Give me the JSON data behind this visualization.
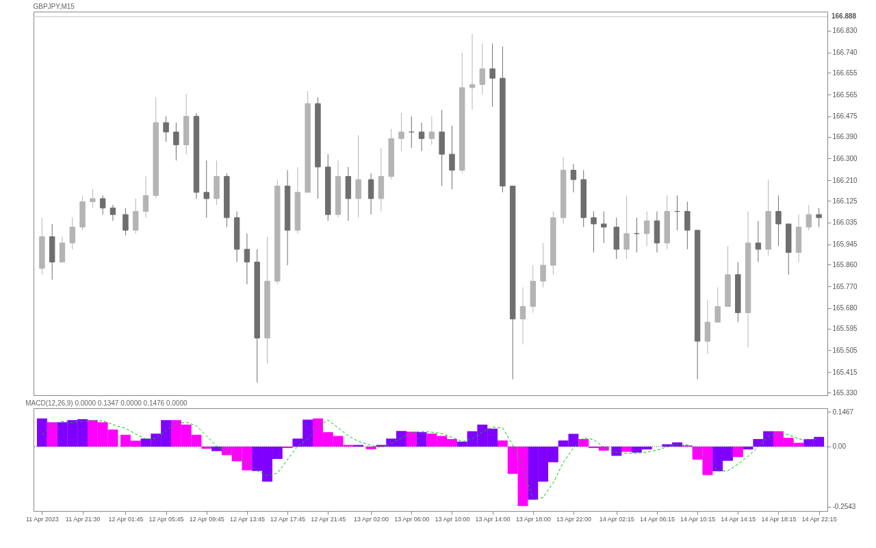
{
  "chart_data": [
    {
      "type": "candlestick",
      "title": "GBPJPY,M15",
      "x": [
        "2023-04-11T17:30",
        "2023-04-11T18:30",
        "2023-04-11T19:30",
        "2023-04-11T20:30",
        "2023-04-11T21:30",
        "2023-04-11T22:30",
        "2023-04-11T23:30",
        "2023-04-12T00:30",
        "2023-04-12T01:45",
        "2023-04-12T02:45",
        "2023-04-12T03:45",
        "2023-04-12T04:45",
        "2023-04-12T05:45",
        "2023-04-12T06:45",
        "2023-04-12T07:45",
        "2023-04-12T08:45",
        "2023-04-12T09:45",
        "2023-04-12T10:45",
        "2023-04-12T11:45",
        "2023-04-12T12:45",
        "2023-04-12T13:45",
        "2023-04-12T14:45",
        "2023-04-12T15:45",
        "2023-04-12T16:45",
        "2023-04-12T17:45",
        "2023-04-12T18:45",
        "2023-04-12T19:45",
        "2023-04-12T20:45",
        "2023-04-12T21:45",
        "2023-04-12T22:45",
        "2023-04-12T23:45",
        "2023-04-13T00:45",
        "2023-04-13T02:00",
        "2023-04-13T03:00",
        "2023-04-13T04:00",
        "2023-04-13T05:00",
        "2023-04-13T06:00",
        "2023-04-13T07:00",
        "2023-04-13T08:00",
        "2023-04-13T09:00",
        "2023-04-13T10:00",
        "2023-04-13T11:00",
        "2023-04-13T12:00",
        "2023-04-13T13:00",
        "2023-04-13T14:00",
        "2023-04-13T15:00",
        "2023-04-13T16:00",
        "2023-04-13T17:00",
        "2023-04-13T18:00",
        "2023-04-13T19:00",
        "2023-04-13T20:00",
        "2023-04-13T21:00",
        "2023-04-13T22:00",
        "2023-04-13T23:00",
        "2023-04-14T00:00",
        "2023-04-14T01:00",
        "2023-04-14T02:15",
        "2023-04-14T03:15",
        "2023-04-14T04:15",
        "2023-04-14T05:15",
        "2023-04-14T06:15",
        "2023-04-14T07:15",
        "2023-04-14T08:15",
        "2023-04-14T09:15",
        "2023-04-14T10:15",
        "2023-04-14T11:15",
        "2023-04-14T12:15",
        "2023-04-14T13:15",
        "2023-04-14T14:15",
        "2023-04-14T15:15",
        "2023-04-14T16:15",
        "2023-04-14T17:15",
        "2023-04-14T18:15",
        "2023-04-14T19:15",
        "2023-04-14T20:15",
        "2023-04-14T21:15",
        "2023-04-14T22:15"
      ],
      "ohlc": [
        [
          165.845,
          166.055,
          165.819,
          165.976
        ],
        [
          165.976,
          166.029,
          165.798,
          165.871
        ],
        [
          165.871,
          165.976,
          165.871,
          165.95
        ],
        [
          165.95,
          166.055,
          165.924,
          166.016
        ],
        [
          166.016,
          166.147,
          166.003,
          166.121
        ],
        [
          166.121,
          166.173,
          166.095,
          166.134
        ],
        [
          166.134,
          166.147,
          166.068,
          166.095
        ],
        [
          166.095,
          166.108,
          166.042,
          166.068
        ],
        [
          166.068,
          166.095,
          165.982,
          166.003
        ],
        [
          166.003,
          166.134,
          165.989,
          166.081
        ],
        [
          166.081,
          166.226,
          166.055,
          166.147
        ],
        [
          166.147,
          166.554,
          166.134,
          166.449
        ],
        [
          166.449,
          166.475,
          166.37,
          166.41
        ],
        [
          166.41,
          166.449,
          166.292,
          166.357
        ],
        [
          166.357,
          166.567,
          166.318,
          166.475
        ],
        [
          166.475,
          166.489,
          166.134,
          166.16
        ],
        [
          166.16,
          166.292,
          166.055,
          166.134
        ],
        [
          166.134,
          166.292,
          166.108,
          166.226
        ],
        [
          166.226,
          166.239,
          166.016,
          166.055
        ],
        [
          166.055,
          166.081,
          165.871,
          165.924
        ],
        [
          165.924,
          165.989,
          165.779,
          165.871
        ],
        [
          165.871,
          165.924,
          165.372,
          165.556
        ],
        [
          165.556,
          165.976,
          165.451,
          165.792
        ],
        [
          165.792,
          166.213,
          165.779,
          166.186
        ],
        [
          166.186,
          166.252,
          165.858,
          166.003
        ],
        [
          166.003,
          166.265,
          165.989,
          166.16
        ],
        [
          166.16,
          166.58,
          166.16,
          166.528
        ],
        [
          166.528,
          166.554,
          166.134,
          166.265
        ],
        [
          166.265,
          166.318,
          166.042,
          166.068
        ],
        [
          166.068,
          166.292,
          166.055,
          166.226
        ],
        [
          166.226,
          166.265,
          166.042,
          166.134
        ],
        [
          166.134,
          166.397,
          166.055,
          166.213
        ],
        [
          166.213,
          166.239,
          166.068,
          166.134
        ],
        [
          166.134,
          166.344,
          166.081,
          166.226
        ],
        [
          166.226,
          166.423,
          166.213,
          166.383
        ],
        [
          166.383,
          166.489,
          166.331,
          166.41
        ],
        [
          166.41,
          166.475,
          166.344,
          166.41
        ],
        [
          166.41,
          166.449,
          166.331,
          166.383
        ],
        [
          166.383,
          166.475,
          166.357,
          166.41
        ],
        [
          166.41,
          166.502,
          166.186,
          166.318
        ],
        [
          166.318,
          166.436,
          166.173,
          166.252
        ],
        [
          166.252,
          166.738,
          166.239,
          166.594
        ],
        [
          166.594,
          166.817,
          166.502,
          166.607
        ],
        [
          166.607,
          166.777,
          166.567,
          166.672
        ],
        [
          166.672,
          166.777,
          166.515,
          166.633
        ],
        [
          166.633,
          166.764,
          166.16,
          166.186
        ],
        [
          166.186,
          166.186,
          165.385,
          165.635
        ],
        [
          165.635,
          165.766,
          165.53,
          165.687
        ],
        [
          165.687,
          165.858,
          165.661,
          165.792
        ],
        [
          165.792,
          165.95,
          165.766,
          165.858
        ],
        [
          165.858,
          166.081,
          165.819,
          166.055
        ],
        [
          166.055,
          166.305,
          166.029,
          166.252
        ],
        [
          166.252,
          166.278,
          166.16,
          166.213
        ],
        [
          166.213,
          166.252,
          166.016,
          166.055
        ],
        [
          166.055,
          166.081,
          165.911,
          166.029
        ],
        [
          166.029,
          166.081,
          165.95,
          166.016
        ],
        [
          166.016,
          166.055,
          165.884,
          165.924
        ],
        [
          165.924,
          166.147,
          165.884,
          165.989
        ],
        [
          165.989,
          166.055,
          165.911,
          165.989
        ],
        [
          165.989,
          166.081,
          165.937,
          166.042
        ],
        [
          166.042,
          166.081,
          165.911,
          165.95
        ],
        [
          165.95,
          166.147,
          165.924,
          166.081
        ],
        [
          166.081,
          166.147,
          166.003,
          166.081
        ],
        [
          166.081,
          166.121,
          165.924,
          166.003
        ],
        [
          166.003,
          166.003,
          165.385,
          165.543
        ],
        [
          165.543,
          165.714,
          165.49,
          165.622
        ],
        [
          165.622,
          165.766,
          165.622,
          165.687
        ],
        [
          165.687,
          165.937,
          165.687,
          165.819
        ],
        [
          165.819,
          165.871,
          165.622,
          165.661
        ],
        [
          165.661,
          166.081,
          165.517,
          165.95
        ],
        [
          165.95,
          166.042,
          165.871,
          165.924
        ],
        [
          165.924,
          166.213,
          165.898,
          166.081
        ],
        [
          166.081,
          166.147,
          165.937,
          166.029
        ],
        [
          166.029,
          166.029,
          165.819,
          165.911
        ],
        [
          165.911,
          166.068,
          165.871,
          166.016
        ],
        [
          166.016,
          166.108,
          166.003,
          166.068
        ],
        [
          166.068,
          166.095,
          166.016,
          166.055
        ]
      ],
      "colors": [
        "#b4b4b4",
        "#6e6e6e",
        "#b4b4b4",
        "#b4b4b4",
        "#b4b4b4",
        "#b4b4b4",
        "#6e6e6e",
        "#6e6e6e",
        "#6e6e6e",
        "#b4b4b4",
        "#b4b4b4",
        "#b4b4b4",
        "#6e6e6e",
        "#6e6e6e",
        "#b4b4b4",
        "#6e6e6e",
        "#6e6e6e",
        "#b4b4b4",
        "#6e6e6e",
        "#6e6e6e",
        "#6e6e6e",
        "#6e6e6e",
        "#b4b4b4",
        "#b4b4b4",
        "#6e6e6e",
        "#b4b4b4",
        "#b4b4b4",
        "#6e6e6e",
        "#6e6e6e",
        "#b4b4b4",
        "#6e6e6e",
        "#b4b4b4",
        "#6e6e6e",
        "#b4b4b4",
        "#b4b4b4",
        "#b4b4b4",
        "#6e6e6e",
        "#6e6e6e",
        "#b4b4b4",
        "#6e6e6e",
        "#6e6e6e",
        "#b4b4b4",
        "#b4b4b4",
        "#b4b4b4",
        "#6e6e6e",
        "#6e6e6e",
        "#6e6e6e",
        "#b4b4b4",
        "#b4b4b4",
        "#b4b4b4",
        "#b4b4b4",
        "#b4b4b4",
        "#6e6e6e",
        "#6e6e6e",
        "#6e6e6e",
        "#6e6e6e",
        "#6e6e6e",
        "#b4b4b4",
        "#6e6e6e",
        "#b4b4b4",
        "#6e6e6e",
        "#b4b4b4",
        "#6e6e6e",
        "#6e6e6e",
        "#6e6e6e",
        "#b4b4b4",
        "#b4b4b4",
        "#b4b4b4",
        "#6e6e6e",
        "#b4b4b4",
        "#6e6e6e",
        "#b4b4b4",
        "#6e6e6e",
        "#6e6e6e",
        "#b4b4b4",
        "#b4b4b4",
        "#6e6e6e"
      ],
      "xlim": [
        "2023-04-11T17:00",
        "2023-04-14T22:45"
      ],
      "ylim": [
        165.319,
        166.909
      ],
      "yticks": [
        {
          "value": 166.83,
          "label": "166.830"
        },
        {
          "value": 166.74,
          "label": "166.740"
        },
        166.655,
        166.565,
        166.475,
        {
          "value": 166.39,
          "label": "166.390"
        },
        {
          "value": 166.3,
          "label": "166.300"
        },
        {
          "value": 166.21,
          "label": "166.210"
        },
        166.125,
        166.035,
        165.945,
        {
          "value": 165.86,
          "label": "165.860"
        },
        {
          "value": 165.77,
          "label": "165.770"
        },
        {
          "value": 165.68,
          "label": "165.680"
        },
        165.595,
        165.505,
        165.415,
        {
          "value": 165.33,
          "label": "165.330"
        }
      ],
      "ref_lines": [
        {
          "axis": "y",
          "value": 166.888,
          "label": "166.888",
          "color": "#c8c8c8"
        }
      ],
      "tick_labels": "y"
    },
    {
      "type": "bar",
      "title": "MACD(12,26,9) 0.0000 0.1347 0.0000 0.1476 0.0000",
      "x": [
        "2023-04-11T17:30",
        "2023-04-11T18:30",
        "2023-04-11T19:30",
        "2023-04-11T20:30",
        "2023-04-11T21:30",
        "2023-04-11T22:30",
        "2023-04-11T23:30",
        "2023-04-12T00:30",
        "2023-04-12T01:45",
        "2023-04-12T02:45",
        "2023-04-12T03:45",
        "2023-04-12T04:45",
        "2023-04-12T05:45",
        "2023-04-12T06:45",
        "2023-04-12T07:45",
        "2023-04-12T08:45",
        "2023-04-12T09:45",
        "2023-04-12T10:45",
        "2023-04-12T11:45",
        "2023-04-12T12:45",
        "2023-04-12T13:45",
        "2023-04-12T14:45",
        "2023-04-12T15:45",
        "2023-04-12T16:45",
        "2023-04-12T17:45",
        "2023-04-12T18:45",
        "2023-04-12T19:45",
        "2023-04-12T20:45",
        "2023-04-12T21:45",
        "2023-04-12T22:45",
        "2023-04-12T23:45",
        "2023-04-13T00:45",
        "2023-04-13T02:00",
        "2023-04-13T03:00",
        "2023-04-13T04:00",
        "2023-04-13T05:00",
        "2023-04-13T06:00",
        "2023-04-13T07:00",
        "2023-04-13T08:00",
        "2023-04-13T09:00",
        "2023-04-13T10:00",
        "2023-04-13T11:00",
        "2023-04-13T12:00",
        "2023-04-13T13:00",
        "2023-04-13T14:00",
        "2023-04-13T15:00",
        "2023-04-13T16:00",
        "2023-04-13T17:00",
        "2023-04-13T18:00",
        "2023-04-13T19:00",
        "2023-04-13T20:00",
        "2023-04-13T21:00",
        "2023-04-13T22:00",
        "2023-04-13T23:00",
        "2023-04-14T00:00",
        "2023-04-14T01:00",
        "2023-04-14T02:15",
        "2023-04-14T03:15",
        "2023-04-14T04:15",
        "2023-04-14T05:15",
        "2023-04-14T06:15",
        "2023-04-14T07:15",
        "2023-04-14T08:15",
        "2023-04-14T09:15",
        "2023-04-14T10:15",
        "2023-04-14T11:15",
        "2023-04-14T12:15",
        "2023-04-14T13:15",
        "2023-04-14T14:15",
        "2023-04-14T15:15",
        "2023-04-14T16:15",
        "2023-04-14T17:15",
        "2023-04-14T18:15",
        "2023-04-14T19:15",
        "2023-04-14T20:15",
        "2023-04-14T21:15",
        "2023-04-14T22:15"
      ],
      "series": [
        {
          "type": "bar",
          "colors": [
            "#8000ff",
            "#ff00ff",
            "#8000ff",
            "#8000ff",
            "#8000ff",
            "#ff00ff",
            "#ff00ff",
            "#ff00ff",
            "#ff00ff",
            "#ff00ff",
            "#8000ff",
            "#8000ff",
            "#8000ff",
            "#ff00ff",
            "#ff00ff",
            "#ff00ff",
            "#ff00ff",
            "#8000ff",
            "#ff00ff",
            "#ff00ff",
            "#ff00ff",
            "#8000ff",
            "#8000ff",
            "#8000ff",
            "#ff00ff",
            "#8000ff",
            "#8000ff",
            "#ff00ff",
            "#ff00ff",
            "#ff00ff",
            "#ff00ff",
            "#8000ff",
            "#ff00ff",
            "#8000ff",
            "#8000ff",
            "#8000ff",
            "#ff00ff",
            "#8000ff",
            "#ff00ff",
            "#ff00ff",
            "#ff00ff",
            "#8000ff",
            "#8000ff",
            "#8000ff",
            "#8000ff",
            "#ff00ff",
            "#ff00ff",
            "#ff00ff",
            "#8000ff",
            "#8000ff",
            "#8000ff",
            "#8000ff",
            "#8000ff",
            "#ff00ff",
            "#ff00ff",
            "#ff00ff",
            "#8000ff",
            "#ff00ff",
            "#8000ff",
            "#8000ff",
            "#8000ff",
            "#8000ff",
            "#8000ff",
            "#ff00ff",
            "#ff00ff",
            "#ff00ff",
            "#8000ff",
            "#8000ff",
            "#ff00ff",
            "#8000ff",
            "#8000ff",
            "#8000ff",
            "#ff00ff",
            "#ff00ff",
            "#ff00ff",
            "#8000ff",
            "#8000ff"
          ],
          "values": [
            0.119,
            0.103,
            0.103,
            0.112,
            0.116,
            0.112,
            0.103,
            0.072,
            0.05,
            0.025,
            0.034,
            0.055,
            0.112,
            0.112,
            0.093,
            0.05,
            -0.009,
            -0.019,
            -0.036,
            -0.062,
            -0.1,
            -0.103,
            -0.148,
            -0.052,
            -0.006,
            0.034,
            0.114,
            0.119,
            0.061,
            0.045,
            0.007,
            0.007,
            -0.011,
            0.007,
            0.034,
            0.066,
            0.063,
            0.061,
            0.055,
            0.045,
            0.032,
            0.021,
            0.065,
            0.093,
            0.076,
            0.026,
            -0.115,
            -0.251,
            -0.224,
            -0.148,
            -0.066,
            0.026,
            0.054,
            0.032,
            -0.006,
            -0.017,
            -0.039,
            -0.022,
            -0.025,
            -0.012,
            null,
            0.01,
            0.018,
            0.005,
            -0.055,
            -0.12,
            -0.104,
            -0.06,
            -0.044,
            -0.012,
            0.032,
            0.065,
            0.065,
            0.037,
            0.016,
            0.032,
            0.041
          ]
        },
        {
          "type": "line",
          "color": "#00c000",
          "line_style": "dashed",
          "values": [
            0.05,
            0.095,
            0.106,
            0.103,
            0.107,
            0.109,
            0.109,
            0.093,
            0.077,
            0.053,
            0.032,
            0.034,
            0.069,
            0.097,
            0.103,
            0.088,
            0.045,
            0.002,
            -0.023,
            -0.043,
            -0.068,
            -0.102,
            -0.123,
            -0.112,
            -0.055,
            0.002,
            0.032,
            0.084,
            0.112,
            0.08,
            0.045,
            0.023,
            0.005,
            -0.003,
            0.013,
            0.037,
            0.059,
            0.064,
            0.061,
            0.055,
            0.039,
            0.021,
            0.032,
            0.062,
            0.083,
            0.079,
            0.007,
            -0.088,
            -0.224,
            -0.215,
            -0.153,
            -0.066,
            -0.006,
            0.037,
            0.03,
            -0.004,
            -0.024,
            -0.028,
            -0.028,
            -0.023,
            -0.015,
            -0.001,
            0.009,
            0.007,
            -0.008,
            -0.058,
            -0.104,
            -0.102,
            -0.074,
            -0.041,
            -0.001,
            0.043,
            0.057,
            0.05,
            0.032,
            0.029,
            0.032
          ]
        }
      ],
      "xlim": [
        "2023-04-11T17:00",
        "2023-04-14T22:45"
      ],
      "xticks": [
        {
          "value": "2023-04-11T17:30",
          "label": "11 Apr 2023"
        },
        {
          "value": "2023-04-11T21:30",
          "label": "11 Apr 21:30"
        },
        {
          "value": "2023-04-12T01:45",
          "label": "12 Apr 01:45"
        },
        {
          "value": "2023-04-12T05:45",
          "label": "12 Apr 05:45"
        },
        {
          "value": "2023-04-12T09:45",
          "label": "12 Apr 09:45"
        },
        {
          "value": "2023-04-12T13:45",
          "label": "12 Apr 13:45"
        },
        {
          "value": "2023-04-12T17:45",
          "label": "12 Apr 17:45"
        },
        {
          "value": "2023-04-12T21:45",
          "label": "12 Apr 21:45"
        },
        {
          "value": "2023-04-13T02:00",
          "label": "13 Apr 02:00"
        },
        {
          "value": "2023-04-13T06:00",
          "label": "13 Apr 06:00"
        },
        {
          "value": "2023-04-13T10:00",
          "label": "13 Apr 10:00"
        },
        {
          "value": "2023-04-13T14:00",
          "label": "13 Apr 14:00"
        },
        {
          "value": "2023-04-13T18:00",
          "label": "13 Apr 18:00"
        },
        {
          "value": "2023-04-13T22:00",
          "label": "13 Apr 22:00"
        },
        {
          "value": "2023-04-14T02:15",
          "label": "14 Apr 02:15"
        },
        {
          "value": "2023-04-14T06:15",
          "label": "14 Apr 06:15"
        },
        {
          "value": "2023-04-14T10:15",
          "label": "14 Apr 10:15"
        },
        {
          "value": "2023-04-14T14:15",
          "label": "14 Apr 14:15"
        },
        {
          "value": "2023-04-14T18:15",
          "label": "14 Apr 18:15"
        },
        {
          "value": "2023-04-14T22:15",
          "label": "14 Apr 22:15"
        }
      ],
      "ylim": [
        -0.272,
        0.162
      ],
      "yticks": [
        0.1467,
        {
          "value": 0,
          "label": "0.00"
        },
        -0.2543
      ],
      "ref_lines": [
        {
          "axis": "y",
          "value": 0,
          "color": "#404060",
          "line_style": "dotted"
        }
      ]
    }
  ]
}
